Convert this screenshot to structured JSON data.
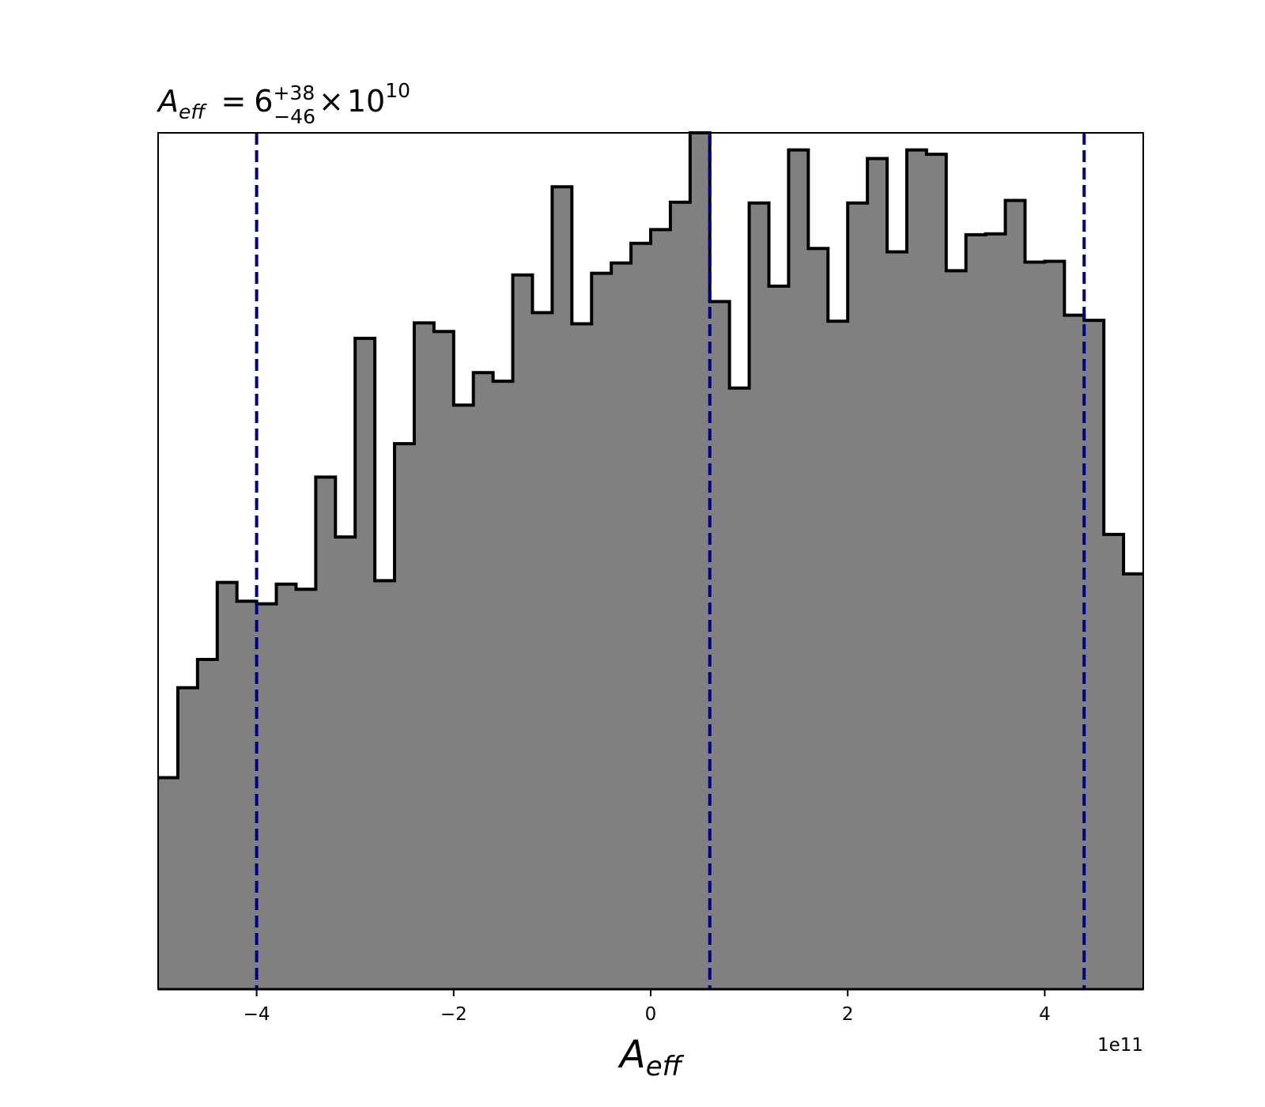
{
  "colors": {
    "fill": "#808080",
    "outline": "#000000",
    "quantile_line": "#00007f",
    "background": "#ffffff"
  },
  "chart_data": {
    "type": "histogram",
    "title": {
      "symbol": "A",
      "symbol_subscript": "eff",
      "equals": "=",
      "mantissa": "6",
      "upper_error": "+38",
      "lower_error": "−46",
      "times": "×",
      "base": "10",
      "exponent": "10"
    },
    "xlabel": {
      "symbol": "A",
      "subscript": "eff"
    },
    "x_offset_label": "1e11",
    "x_scale_multiplier": 100000000000.0,
    "xlim": [
      -5,
      5
    ],
    "ylim": [
      0,
      1
    ],
    "y_axis_visible": false,
    "grid": false,
    "legend": "none",
    "xticks": [
      -4,
      -2,
      0,
      2,
      4
    ],
    "xtick_labels": [
      "−4",
      "−2",
      "0",
      "2",
      "4"
    ],
    "bin_edges": [
      -5.0,
      -4.8,
      -4.6,
      -4.4,
      -4.2,
      -4.0,
      -3.8,
      -3.6,
      -3.4,
      -3.2,
      -3.0,
      -2.8,
      -2.6,
      -2.4,
      -2.2,
      -2.0,
      -1.8,
      -1.6,
      -1.4,
      -1.2,
      -1.0,
      -0.8,
      -0.6,
      -0.4,
      -0.2,
      0.0,
      0.2,
      0.4,
      0.6,
      0.8,
      1.0,
      1.2,
      1.4,
      1.6,
      1.8,
      2.0,
      2.2,
      2.4,
      2.6,
      2.8,
      3.0,
      3.2,
      3.4,
      3.6,
      3.8,
      4.0,
      4.2,
      4.4,
      4.6,
      4.8,
      5.0
    ],
    "counts_relative": [
      0.247,
      0.352,
      0.385,
      0.475,
      0.453,
      0.45,
      0.473,
      0.467,
      0.598,
      0.528,
      0.76,
      0.477,
      0.637,
      0.778,
      0.768,
      0.682,
      0.72,
      0.71,
      0.834,
      0.79,
      0.937,
      0.777,
      0.836,
      0.848,
      0.871,
      0.887,
      0.919,
      1.0,
      0.803,
      0.702,
      0.918,
      0.821,
      0.98,
      0.865,
      0.78,
      0.918,
      0.97,
      0.861,
      0.98,
      0.975,
      0.839,
      0.881,
      0.882,
      0.921,
      0.849,
      0.85,
      0.787,
      0.781,
      0.531,
      0.485
    ],
    "quantile_lines": [
      -4.0,
      0.6,
      4.4
    ]
  }
}
